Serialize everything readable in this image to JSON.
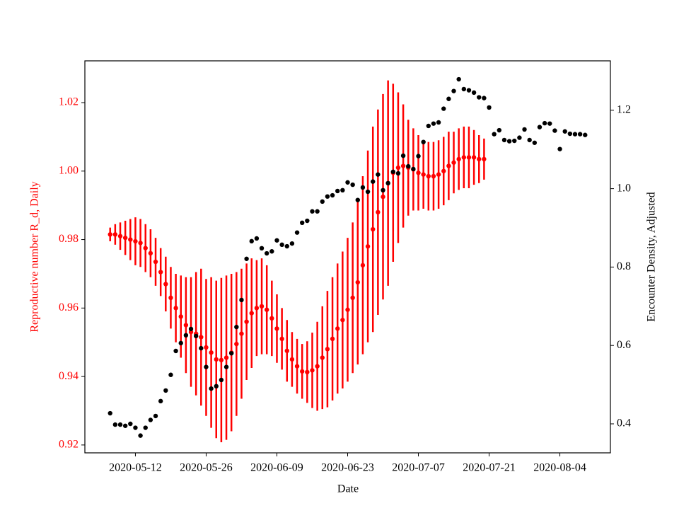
{
  "chart_data": {
    "type": "scatter",
    "xlabel": "Date",
    "ylabel": "Reproductive number R_d, Daily",
    "y2label": "Encounter Density, Adjusted",
    "x": [
      "2020-05-07",
      "2020-05-08",
      "2020-05-09",
      "2020-05-10",
      "2020-05-11",
      "2020-05-12",
      "2020-05-13",
      "2020-05-14",
      "2020-05-15",
      "2020-05-16",
      "2020-05-17",
      "2020-05-18",
      "2020-05-19",
      "2020-05-20",
      "2020-05-21",
      "2020-05-22",
      "2020-05-23",
      "2020-05-24",
      "2020-05-25",
      "2020-05-26",
      "2020-05-27",
      "2020-05-28",
      "2020-05-29",
      "2020-05-30",
      "2020-05-31",
      "2020-06-01",
      "2020-06-02",
      "2020-06-03",
      "2020-06-04",
      "2020-06-05",
      "2020-06-06",
      "2020-06-07",
      "2020-06-08",
      "2020-06-09",
      "2020-06-10",
      "2020-06-11",
      "2020-06-12",
      "2020-06-13",
      "2020-06-14",
      "2020-06-15",
      "2020-06-16",
      "2020-06-17",
      "2020-06-18",
      "2020-06-19",
      "2020-06-20",
      "2020-06-21",
      "2020-06-22",
      "2020-06-23",
      "2020-06-24",
      "2020-06-25",
      "2020-06-26",
      "2020-06-27",
      "2020-06-28",
      "2020-06-29",
      "2020-06-30",
      "2020-07-01",
      "2020-07-02",
      "2020-07-03",
      "2020-07-04",
      "2020-07-05",
      "2020-07-06",
      "2020-07-07",
      "2020-07-08",
      "2020-07-09",
      "2020-07-10",
      "2020-07-11",
      "2020-07-12",
      "2020-07-13",
      "2020-07-14",
      "2020-07-15",
      "2020-07-16",
      "2020-07-17",
      "2020-07-18",
      "2020-07-19",
      "2020-07-20",
      "2020-07-21",
      "2020-07-22",
      "2020-07-23",
      "2020-07-24",
      "2020-07-25",
      "2020-07-26",
      "2020-07-27",
      "2020-07-28",
      "2020-07-29",
      "2020-07-30",
      "2020-07-31",
      "2020-08-01",
      "2020-08-02",
      "2020-08-03",
      "2020-08-04",
      "2020-08-05",
      "2020-08-06",
      "2020-08-07",
      "2020-08-08",
      "2020-08-09"
    ],
    "xlim": [
      "2020-05-02",
      "2020-08-14"
    ],
    "xticks": [
      "2020-05-12",
      "2020-05-26",
      "2020-06-09",
      "2020-06-23",
      "2020-07-07",
      "2020-07-21",
      "2020-08-04"
    ],
    "ylim": [
      0.9177,
      1.0322
    ],
    "yticks": [
      0.92,
      0.94,
      0.96,
      0.98,
      {
        "value": 1,
        "label": "1.00"
      },
      1.02
    ],
    "y2lim": [
      0.326,
      1.326
    ],
    "y2ticks": [
      0.4,
      0.6,
      0.8,
      {
        "value": 1,
        "label": "1.0"
      },
      1.2
    ],
    "series": [
      {
        "color": "#ff0000",
        "values": [
          0.9815,
          0.9815,
          0.981,
          0.9805,
          0.98,
          0.9795,
          0.979,
          0.9775,
          0.976,
          0.9735,
          0.9705,
          0.967,
          0.963,
          0.96,
          0.9575,
          0.955,
          0.953,
          0.9525,
          0.9515,
          0.9485,
          0.947,
          0.945,
          0.9448,
          0.9455,
          0.947,
          0.9495,
          0.9525,
          0.956,
          0.9585,
          0.96,
          0.9605,
          0.9595,
          0.957,
          0.954,
          0.951,
          0.9475,
          0.945,
          0.943,
          0.9415,
          0.9413,
          0.9418,
          0.943,
          0.9455,
          0.948,
          0.951,
          0.954,
          0.9565,
          0.9595,
          0.963,
          0.9675,
          0.9725,
          0.978,
          0.983,
          0.988,
          0.9925,
          0.9965,
          0.9995,
          1.001,
          1.0015,
          1.001,
          1.0005,
          0.9995,
          0.999,
          0.9985,
          0.9985,
          0.999,
          1.0,
          1.0015,
          1.0025,
          1.0035,
          1.004,
          1.004,
          1.004,
          1.0035,
          1.0035,
          null,
          null,
          null,
          null,
          null,
          null,
          null,
          null,
          null,
          null,
          null,
          null,
          null,
          null,
          null,
          null,
          null,
          null,
          null,
          null
        ],
        "errors": [
          0.002,
          0.003,
          0.004,
          0.005,
          0.006,
          0.007,
          0.007,
          0.007,
          0.007,
          0.007,
          0.007,
          0.008,
          0.009,
          0.01,
          0.012,
          0.014,
          0.016,
          0.018,
          0.02,
          0.02,
          0.022,
          0.023,
          0.024,
          0.024,
          0.023,
          0.021,
          0.019,
          0.017,
          0.016,
          0.014,
          0.014,
          0.013,
          0.011,
          0.01,
          0.009,
          0.009,
          0.008,
          0.008,
          0.008,
          0.009,
          0.011,
          0.013,
          0.015,
          0.017,
          0.018,
          0.019,
          0.02,
          0.021,
          0.022,
          0.024,
          0.026,
          0.028,
          0.03,
          0.03,
          0.03,
          0.03,
          0.026,
          0.022,
          0.018,
          0.014,
          0.012,
          0.011,
          0.01,
          0.01,
          0.01,
          0.01,
          0.01,
          0.01,
          0.009,
          0.009,
          0.009,
          0.009,
          0.008,
          0.007,
          0.006,
          null,
          null,
          null,
          null,
          null,
          null,
          null,
          null,
          null,
          null,
          null,
          null,
          null,
          null,
          null,
          null,
          null,
          null,
          null,
          null
        ]
      },
      {
        "color": "#000000",
        "axis": "y2",
        "values": [
          0.427,
          0.398,
          0.398,
          0.395,
          0.4,
          0.39,
          0.37,
          0.39,
          0.41,
          0.42,
          0.458,
          0.485,
          0.525,
          0.586,
          0.606,
          0.626,
          0.642,
          0.624,
          0.593,
          0.545,
          0.49,
          0.496,
          0.512,
          0.545,
          0.58,
          0.647,
          0.716,
          0.821,
          0.866,
          0.873,
          0.848,
          0.835,
          0.84,
          0.868,
          0.857,
          0.853,
          0.86,
          0.888,
          0.913,
          0.918,
          0.942,
          0.942,
          0.967,
          0.98,
          0.983,
          0.994,
          0.996,
          1.016,
          1.01,
          0.971,
          1.003,
          0.992,
          1.018,
          1.036,
          0.996,
          1.014,
          1.043,
          1.039,
          1.084,
          1.057,
          1.05,
          1.083,
          1.119,
          1.16,
          1.166,
          1.169,
          1.204,
          1.229,
          1.249,
          1.279,
          1.254,
          1.251,
          1.245,
          1.233,
          1.231,
          1.207,
          1.139,
          1.149,
          1.124,
          1.121,
          1.122,
          1.13,
          1.151,
          1.124,
          1.117,
          1.157,
          1.167,
          1.166,
          1.148,
          1.101,
          1.146,
          1.14,
          1.139,
          1.139,
          1.137
        ]
      }
    ]
  }
}
